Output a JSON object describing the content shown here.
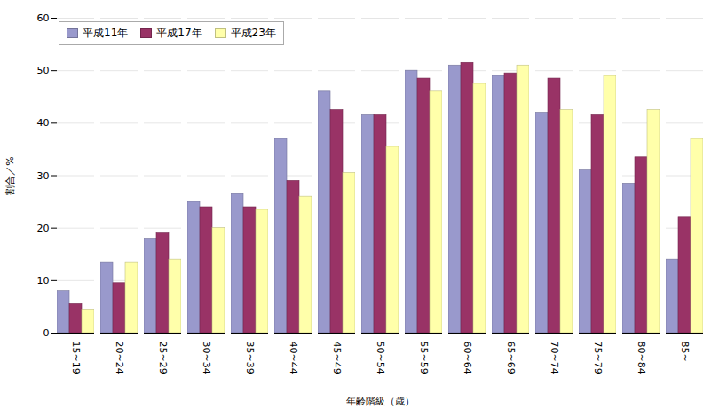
{
  "chart_data": {
    "type": "bar",
    "categories": [
      "15~19",
      "20~24",
      "25~29",
      "30~34",
      "35~39",
      "40~44",
      "45~49",
      "50~54",
      "55~59",
      "60~64",
      "65~69",
      "70~74",
      "75~79",
      "80~84",
      "85~"
    ],
    "series": [
      {
        "name": "平成11年",
        "color": "#9999CC",
        "values": [
          8,
          13.5,
          18,
          25,
          26.5,
          37,
          46,
          41.5,
          50,
          51,
          49,
          42,
          31,
          28.5,
          14
        ]
      },
      {
        "name": "平成17年",
        "color": "#993366",
        "values": [
          5.5,
          9.5,
          19,
          24,
          24,
          29,
          42.5,
          41.5,
          48.5,
          51.5,
          49.5,
          48.5,
          41.5,
          33.5,
          22
        ]
      },
      {
        "name": "平成23年",
        "color": "#FFFFAA",
        "values": [
          4.5,
          13.5,
          14,
          20,
          23.5,
          26,
          30.5,
          35.5,
          46,
          47.5,
          51,
          42.5,
          49,
          42.5,
          37
        ]
      }
    ],
    "xlabel": "年齢階級（歳）",
    "ylabel": "割合／%",
    "ylim": [
      0,
      60
    ],
    "yticks": [
      0,
      10,
      20,
      30,
      40,
      50,
      60
    ],
    "grid": true,
    "legend": "upper left"
  }
}
